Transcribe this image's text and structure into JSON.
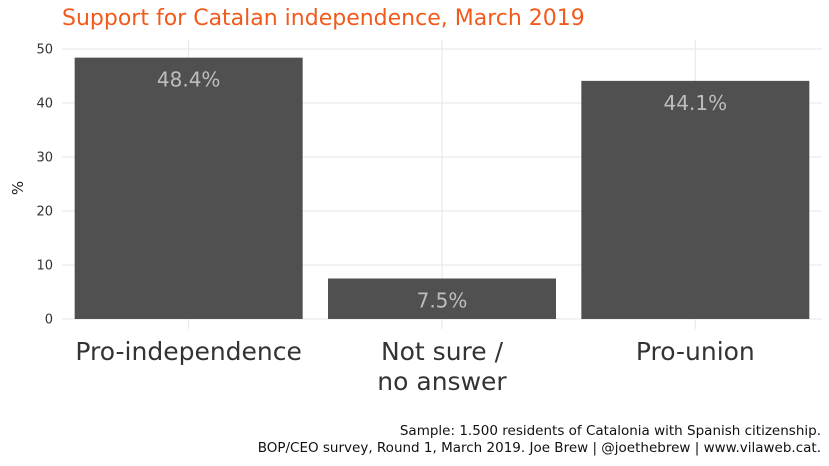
{
  "chart_data": {
    "type": "bar",
    "title": "Support for Catalan independence, March 2019",
    "ylabel": "%",
    "xlabel": "",
    "categories": [
      "Pro-independence",
      "Not sure /\nno answer",
      "Pro-union"
    ],
    "values": [
      48.4,
      7.5,
      44.1
    ],
    "value_labels": [
      "48.4%",
      "7.5%",
      "44.1%"
    ],
    "yticks": [
      0,
      10,
      20,
      30,
      40,
      50
    ],
    "ylim": [
      0,
      50
    ],
    "grid": true,
    "bar_color": "#4a4a4a",
    "label_color": "#bdbdbd",
    "title_color": "#f25a1c"
  },
  "caption": {
    "line1": "Sample: 1.500 residents of Catalonia with Spanish citizenship.",
    "line2": "BOP/CEO survey, Round 1, March 2019. Joe Brew | @joethebrew | www.vilaweb.cat."
  }
}
